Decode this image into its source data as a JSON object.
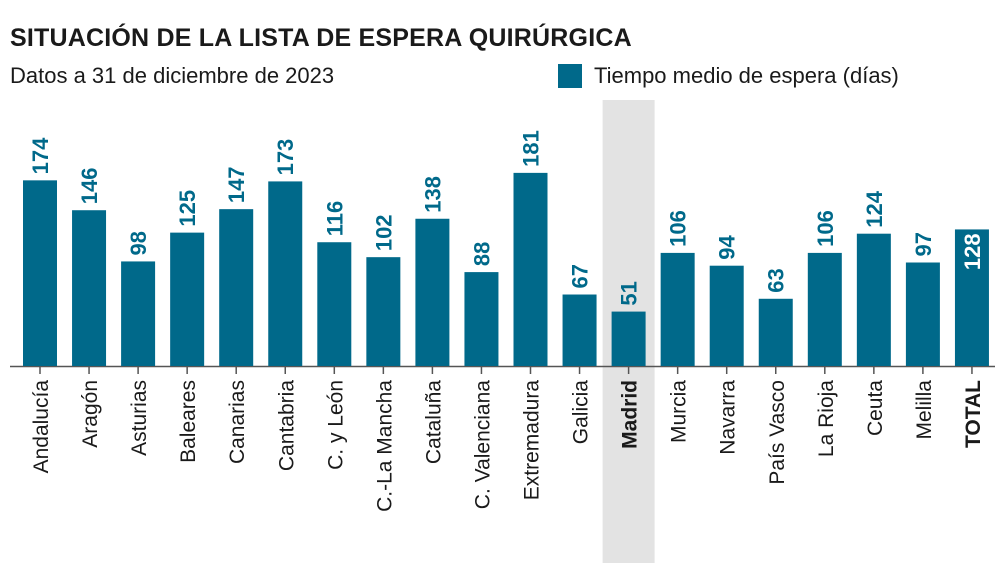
{
  "chart_data": {
    "type": "bar",
    "title": "SITUACIÓN DE LA LISTA DE ESPERA QUIRÚRGICA",
    "subtitle": "Datos a 31 de diciembre de 2023",
    "legend": "Tiempo medio de espera (días)",
    "categories": [
      "Andalucía",
      "Aragón",
      "Asturias",
      "Baleares",
      "Canarias",
      "Cantabria",
      "C. y León",
      "C.-La Mancha",
      "Cataluña",
      "C. Valenciana",
      "Extremadura",
      "Galicia",
      "Madrid",
      "Murcia",
      "Navarra",
      "País Vasco",
      "La Rioja",
      "Ceuta",
      "Melilla",
      "TOTAL"
    ],
    "series": [
      {
        "name": "Tiempo medio de espera (días)",
        "values": [
          174,
          146,
          98,
          125,
          147,
          173,
          116,
          102,
          138,
          88,
          181,
          67,
          51,
          106,
          94,
          63,
          106,
          124,
          97,
          128
        ]
      }
    ],
    "highlight": "Madrid",
    "bold_categories": [
      "Madrid",
      "TOTAL"
    ],
    "ylim": [
      0,
      200
    ],
    "grid": false,
    "legend_position": "top-right",
    "xlabel": "",
    "ylabel": "",
    "colors": {
      "bar": "#00698a",
      "highlight_band": "#e3e3e3",
      "axis": "#555555",
      "text": "#1a1a1a"
    }
  }
}
